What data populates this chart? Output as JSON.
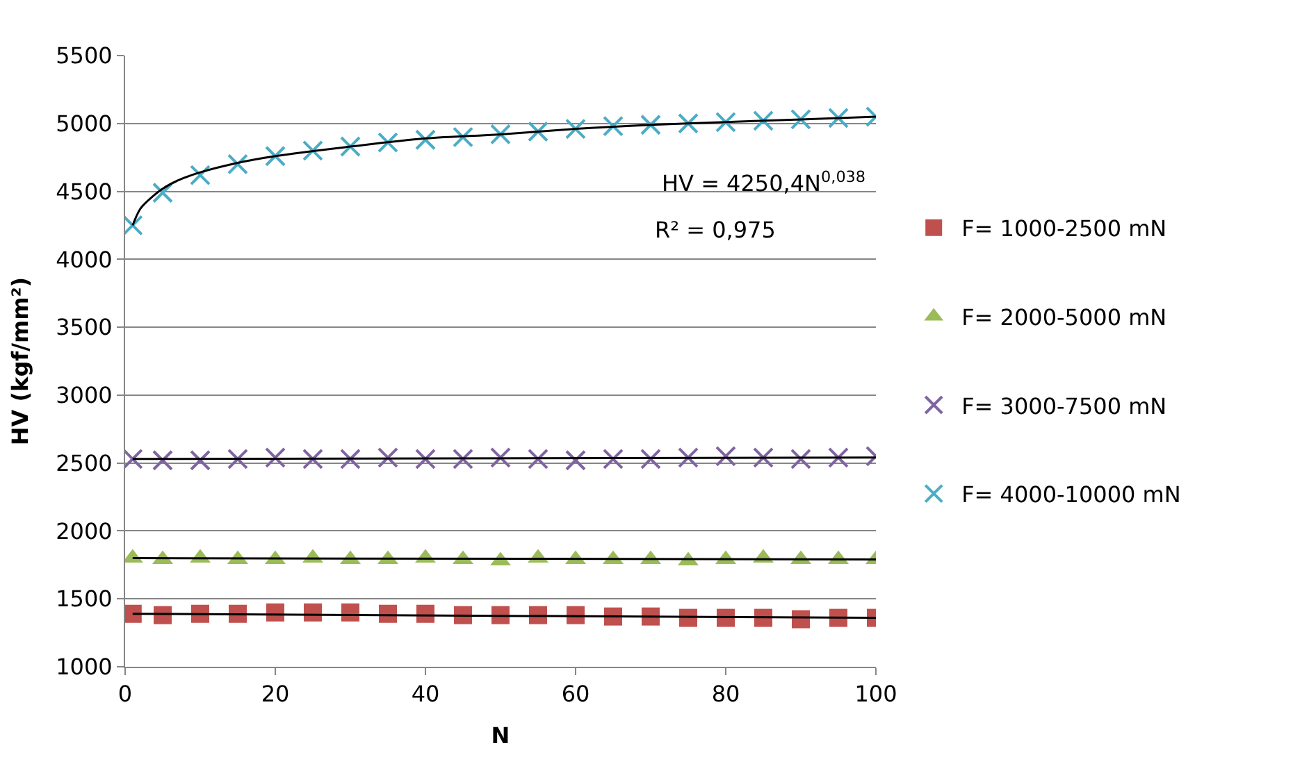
{
  "chart_data": {
    "type": "scatter",
    "xlabel": "N",
    "ylabel": "HV (kgf/mm²)",
    "xlim": [
      0,
      100
    ],
    "xticks": [
      0,
      20,
      40,
      60,
      80,
      100
    ],
    "ylim": [
      1000,
      5500
    ],
    "yticks": [
      1000,
      1500,
      2000,
      2500,
      3000,
      3500,
      4000,
      4500,
      5000,
      5500
    ],
    "grid": "y",
    "legend": "right",
    "annotations": [
      "HV = 4250,4N$^{0,038}$",
      "R² = 0,975"
    ],
    "series": [
      {
        "name": "F= 1000-2500 mN",
        "color": "#c0504d",
        "marker": "square",
        "x": [
          1,
          5,
          10,
          15,
          20,
          25,
          30,
          35,
          40,
          45,
          50,
          55,
          60,
          65,
          70,
          75,
          80,
          85,
          90,
          95,
          100
        ],
        "values": [
          1390,
          1380,
          1390,
          1390,
          1400,
          1400,
          1400,
          1390,
          1390,
          1380,
          1380,
          1380,
          1380,
          1370,
          1370,
          1360,
          1360,
          1360,
          1350,
          1360,
          1360
        ]
      },
      {
        "name": "F= 2000-5000 mN",
        "color": "#9bbb59",
        "marker": "triangle",
        "x": [
          1,
          5,
          10,
          15,
          20,
          25,
          30,
          35,
          40,
          45,
          50,
          55,
          60,
          65,
          70,
          75,
          80,
          85,
          90,
          95,
          100
        ],
        "values": [
          1800,
          1790,
          1800,
          1790,
          1790,
          1800,
          1790,
          1790,
          1800,
          1790,
          1780,
          1800,
          1790,
          1790,
          1790,
          1780,
          1790,
          1800,
          1790,
          1790,
          1790
        ]
      },
      {
        "name": "F= 3000-7500 mN",
        "color": "#8064a2",
        "marker": "cross",
        "x": [
          1,
          5,
          10,
          15,
          20,
          25,
          30,
          35,
          40,
          45,
          50,
          55,
          60,
          65,
          70,
          75,
          80,
          85,
          90,
          95,
          100
        ],
        "values": [
          2530,
          2520,
          2520,
          2530,
          2540,
          2530,
          2530,
          2540,
          2530,
          2530,
          2540,
          2530,
          2520,
          2530,
          2530,
          2540,
          2550,
          2540,
          2530,
          2540,
          2550
        ]
      },
      {
        "name": "F= 4000-10000 mN",
        "color": "#4bacc6",
        "marker": "cross",
        "x": [
          1,
          5,
          10,
          15,
          20,
          25,
          30,
          35,
          40,
          45,
          50,
          55,
          60,
          65,
          70,
          75,
          80,
          85,
          90,
          95,
          100
        ],
        "values": [
          4250,
          4490,
          4620,
          4700,
          4760,
          4800,
          4830,
          4860,
          4880,
          4900,
          4920,
          4940,
          4960,
          4980,
          4990,
          5000,
          5010,
          5020,
          5030,
          5040,
          5050
        ]
      },
      {
        "type": "line",
        "color": "#000000",
        "marker": "none",
        "x": [
          1,
          100
        ],
        "values": [
          1390,
          1360
        ]
      },
      {
        "type": "line",
        "color": "#000000",
        "marker": "none",
        "x": [
          1,
          100
        ],
        "values": [
          1800,
          1790
        ]
      },
      {
        "type": "line",
        "color": "#000000",
        "marker": "none",
        "x": [
          1,
          100
        ],
        "values": [
          2530,
          2540
        ]
      },
      {
        "type": "line",
        "color": "#000000",
        "marker": "none",
        "x": [
          1,
          2,
          3,
          5,
          7,
          10,
          15,
          20,
          30,
          40,
          50,
          60,
          70,
          80,
          90,
          100
        ],
        "values": [
          4250,
          4370,
          4430,
          4520,
          4580,
          4640,
          4710,
          4760,
          4830,
          4890,
          4920,
          4960,
          4990,
          5010,
          5030,
          5050
        ]
      }
    ]
  }
}
